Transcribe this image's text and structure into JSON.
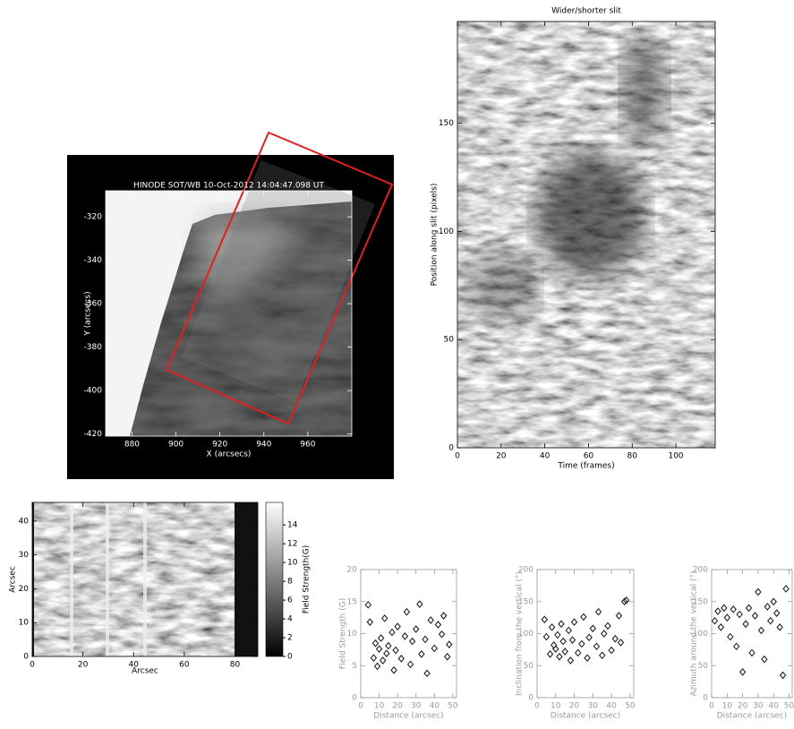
{
  "chart_data": [
    {
      "type": "image",
      "title": "HINODE SOT/WB 10-Oct-2012 14:04:47.098 UT",
      "xlabel": "X (arcsecs)",
      "ylabel": "Y (arcsecs)",
      "xlim": [
        868,
        980
      ],
      "ylim": [
        -421,
        -308
      ],
      "xticks": [
        880,
        900,
        920,
        940,
        960
      ],
      "yticks": [
        -320,
        -340,
        -360,
        -380,
        -400,
        -420
      ]
    },
    {
      "type": "image",
      "title": "Wider/shorter slit",
      "xlabel": "Time (frames)",
      "ylabel": "Position along slit (pixels)",
      "xlim": [
        0,
        118
      ],
      "ylim": [
        0,
        197
      ],
      "xticks": [
        0,
        20,
        40,
        60,
        80,
        100
      ],
      "yticks": [
        0,
        50,
        100,
        150
      ]
    },
    {
      "type": "image",
      "xlabel": "Arcsec",
      "ylabel": "Arcsec",
      "xlim": [
        0,
        89
      ],
      "ylim": [
        0,
        45.5
      ],
      "xticks": [
        0,
        20,
        40,
        60,
        80
      ],
      "yticks": [
        0,
        10,
        20,
        30,
        40
      ],
      "colorbar": {
        "label": "Field Strength(G)",
        "lim": [
          0,
          16.4
        ],
        "ticks": [
          0,
          2,
          4,
          6,
          8,
          10,
          12,
          14
        ]
      }
    },
    {
      "type": "scatter",
      "xlabel": "Distance (arcsec)",
      "ylabel": "Field Strength (G)",
      "color": "#222",
      "xlim": [
        0,
        52
      ],
      "ylim": [
        0,
        20
      ],
      "xticks": [
        0,
        10,
        20,
        30,
        40,
        50
      ],
      "yticks": [
        0,
        5,
        10,
        15,
        20
      ],
      "x": [
        4,
        5,
        7,
        8,
        9,
        10,
        11,
        12,
        13,
        14,
        15,
        17,
        18,
        19,
        20,
        22,
        24,
        25,
        27,
        28,
        30,
        32,
        33,
        35,
        36,
        38,
        40,
        42,
        44,
        45,
        47,
        48
      ],
      "y": [
        14.5,
        11.8,
        6.2,
        8.5,
        4.9,
        7.6,
        9.3,
        5.8,
        12.4,
        6.9,
        8.1,
        10.2,
        4.3,
        7.4,
        11.1,
        6.1,
        9.6,
        13.4,
        5.2,
        8.8,
        10.7,
        14.6,
        6.8,
        9.1,
        3.8,
        12.1,
        7.7,
        11.4,
        9.9,
        12.8,
        6.4,
        8.3
      ]
    },
    {
      "type": "scatter",
      "xlabel": "Distance (arcsec)",
      "ylabel": "Inclination from the vertical (°)",
      "color": "#222",
      "xlim": [
        0,
        52
      ],
      "ylim": [
        0,
        200
      ],
      "xticks": [
        0,
        10,
        20,
        30,
        40,
        50
      ],
      "yticks": [
        0,
        50,
        100,
        150,
        200
      ],
      "x": [
        4,
        5,
        7,
        8,
        9,
        10,
        11,
        12,
        13,
        14,
        15,
        17,
        18,
        19,
        20,
        22,
        24,
        25,
        27,
        28,
        30,
        32,
        33,
        35,
        36,
        38,
        40,
        42,
        44,
        45,
        47,
        48
      ],
      "y": [
        122,
        95,
        68,
        110,
        82,
        76,
        98,
        64,
        115,
        88,
        72,
        105,
        58,
        90,
        118,
        70,
        84,
        126,
        62,
        94,
        108,
        80,
        134,
        66,
        100,
        112,
        74,
        92,
        128,
        86,
        150,
        152
      ]
    },
    {
      "type": "scatter",
      "xlabel": "Distance (arcsec)",
      "ylabel": "Azimuth around the vertical (°)",
      "color": "#222",
      "xlim": [
        0,
        52
      ],
      "ylim": [
        0,
        200
      ],
      "xticks": [
        0,
        10,
        20,
        30,
        40,
        50
      ],
      "yticks": [
        0,
        50,
        100,
        150,
        200
      ],
      "x": [
        2,
        4,
        6,
        8,
        10,
        12,
        14,
        16,
        18,
        20,
        22,
        24,
        26,
        28,
        30,
        32,
        34,
        36,
        38,
        40,
        42,
        44,
        46,
        48
      ],
      "y": [
        120,
        135,
        110,
        140,
        125,
        95,
        138,
        80,
        130,
        40,
        115,
        140,
        70,
        128,
        165,
        105,
        60,
        142,
        120,
        150,
        132,
        110,
        35,
        170
      ]
    }
  ]
}
